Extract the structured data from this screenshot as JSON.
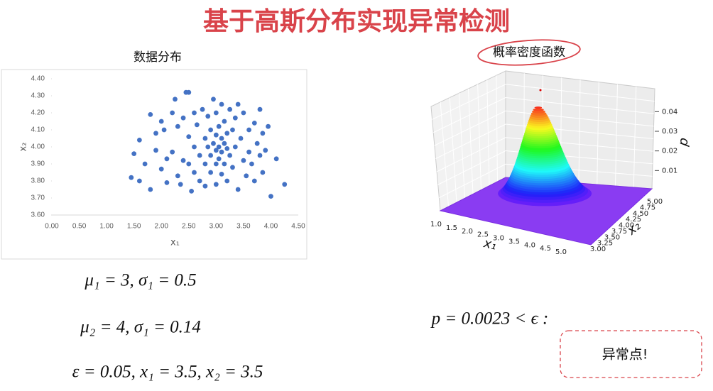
{
  "title": "基于高斯分布实现异常检测",
  "scatter": {
    "type": "scatter",
    "title": "数据分布",
    "x_label": "x₁",
    "y_label": "x₂",
    "color": "#4472c4",
    "xlim": [
      0,
      4.5
    ],
    "ylim": [
      3.6,
      4.4
    ],
    "xticks": [
      {
        "value": 0,
        "label": "0.00"
      },
      {
        "value": 0.5,
        "label": "0.50"
      },
      {
        "value": 1,
        "label": "1.00"
      },
      {
        "value": 1.5,
        "label": "1.50"
      },
      {
        "value": 2,
        "label": "2.00"
      },
      {
        "value": 2.5,
        "label": "2.50"
      },
      {
        "value": 3,
        "label": "3.00"
      },
      {
        "value": 3.5,
        "label": "3.50"
      },
      {
        "value": 4,
        "label": "4.00"
      },
      {
        "value": 4.5,
        "label": "4.50"
      }
    ],
    "yticks": [
      {
        "value": 3.6,
        "label": "3.60"
      },
      {
        "value": 3.7,
        "label": "3.70"
      },
      {
        "value": 3.8,
        "label": "3.80"
      },
      {
        "value": 3.9,
        "label": "3.90"
      },
      {
        "value": 4,
        "label": "4.00"
      },
      {
        "value": 4.1,
        "label": "4.10"
      },
      {
        "value": 4.2,
        "label": "4.20"
      },
      {
        "value": 4.3,
        "label": "4.30"
      },
      {
        "value": 4.4,
        "label": "4.40"
      }
    ],
    "x": [
      1.45,
      1.5,
      1.6,
      1.6,
      1.7,
      1.8,
      1.8,
      1.9,
      1.9,
      2.0,
      2.0,
      2.05,
      2.1,
      2.1,
      2.2,
      2.2,
      2.25,
      2.3,
      2.3,
      2.35,
      2.4,
      2.4,
      2.45,
      2.5,
      2.5,
      2.5,
      2.55,
      2.6,
      2.6,
      2.6,
      2.65,
      2.7,
      2.7,
      2.75,
      2.8,
      2.8,
      2.8,
      2.85,
      2.85,
      2.9,
      2.9,
      2.9,
      2.95,
      2.95,
      3.0,
      3.0,
      3.0,
      3.0,
      3.0,
      3.05,
      3.05,
      3.05,
      3.1,
      3.1,
      3.1,
      3.1,
      3.15,
      3.15,
      3.15,
      3.2,
      3.2,
      3.2,
      3.25,
      3.25,
      3.3,
      3.3,
      3.35,
      3.35,
      3.4,
      3.4,
      3.45,
      3.5,
      3.5,
      3.55,
      3.6,
      3.6,
      3.65,
      3.7,
      3.7,
      3.75,
      3.8,
      3.8,
      3.85,
      3.85,
      3.9,
      4.0,
      4.1,
      4.25,
      3.95
    ],
    "y": [
      3.82,
      3.96,
      4.04,
      3.8,
      3.9,
      4.19,
      3.75,
      4.08,
      3.98,
      4.15,
      3.87,
      4.1,
      3.93,
      3.79,
      4.2,
      3.97,
      4.28,
      4.12,
      3.83,
      3.78,
      4.17,
      3.92,
      4.32,
      4.32,
      4.06,
      3.9,
      3.74,
      4.2,
      4.0,
      3.85,
      4.13,
      3.95,
      3.8,
      4.22,
      4.05,
      3.9,
      3.77,
      4.18,
      4.0,
      4.1,
      3.95,
      3.85,
      4.28,
      4.02,
      4.2,
      4.07,
      3.98,
      3.9,
      3.78,
      4.12,
      4.0,
      3.93,
      4.25,
      4.05,
      3.97,
      3.84,
      4.15,
      4.02,
      3.9,
      4.08,
      3.99,
      3.8,
      4.22,
      3.95,
      4.1,
      3.88,
      4.17,
      4.0,
      4.25,
      3.75,
      4.05,
      4.2,
      3.92,
      3.83,
      4.1,
      3.97,
      3.9,
      4.14,
      3.8,
      4.02,
      4.22,
      3.95,
      4.08,
      3.85,
      3.98,
      3.71,
      3.93,
      3.78,
      4.12
    ]
  },
  "surface": {
    "title": "概率密度函数",
    "x_label": "x₁",
    "y_label": "x₂",
    "z_label": "p",
    "x_tick_labels": [
      "1.0",
      "1.5",
      "2.0",
      "2.5",
      "3.0",
      "3.5",
      "4.0",
      "4.5",
      "5.0"
    ],
    "y_tick_labels": [
      "3.00",
      "3.25",
      "3.50",
      "3.75",
      "4.00",
      "4.25",
      "4.50",
      "4.75",
      "5.00"
    ],
    "zticks": [
      0.01,
      0.02,
      0.03,
      0.04
    ]
  },
  "formulas": [
    "μ₁ = 3, σ₁ = 0.5",
    "μ₂ = 4, σ₁ = 0.14",
    "ε = 0.05, x₁ = 3.5, x₂ = 3.5"
  ],
  "p_formula": "p = 0.0023 < ϵ :",
  "callout": "异常点!"
}
